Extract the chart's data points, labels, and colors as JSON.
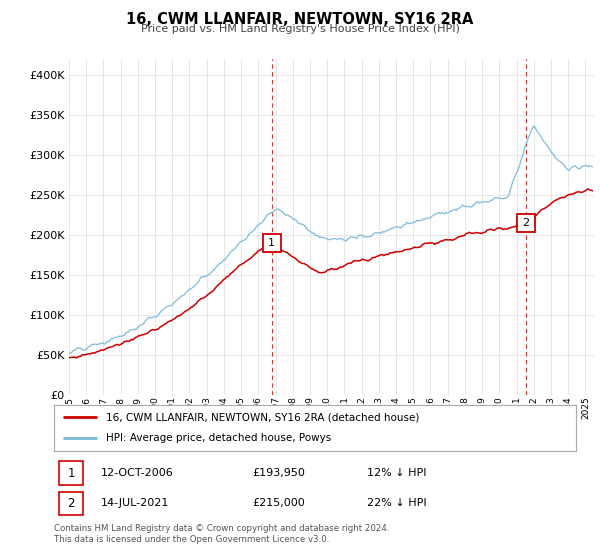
{
  "title": "16, CWM LLANFAIR, NEWTOWN, SY16 2RA",
  "subtitle": "Price paid vs. HM Land Registry's House Price Index (HPI)",
  "legend_line1": "16, CWM LLANFAIR, NEWTOWN, SY16 2RA (detached house)",
  "legend_line2": "HPI: Average price, detached house, Powys",
  "footnote": "Contains HM Land Registry data © Crown copyright and database right 2024.\nThis data is licensed under the Open Government Licence v3.0.",
  "marker1_date": "12-OCT-2006",
  "marker1_price": "£193,950",
  "marker1_hpi": "12% ↓ HPI",
  "marker2_date": "14-JUL-2021",
  "marker2_price": "£215,000",
  "marker2_hpi": "22% ↓ HPI",
  "marker1_x": 2006.78,
  "marker1_y": 193950,
  "marker2_x": 2021.53,
  "marker2_y": 215000,
  "hpi_color": "#7ab8d9",
  "price_color": "#cc0000",
  "vline_color": "#cc0000",
  "ylim": [
    0,
    420000
  ],
  "xlim_start": 1995.0,
  "xlim_end": 2025.5,
  "background_color": "#ffffff",
  "grid_color": "#dddddd",
  "yticks": [
    0,
    50000,
    100000,
    150000,
    200000,
    250000,
    300000,
    350000,
    400000
  ],
  "xticks": [
    1995,
    1996,
    1997,
    1998,
    1999,
    2000,
    2001,
    2002,
    2003,
    2004,
    2005,
    2006,
    2007,
    2008,
    2009,
    2010,
    2011,
    2012,
    2013,
    2014,
    2015,
    2016,
    2017,
    2018,
    2019,
    2020,
    2021,
    2022,
    2023,
    2024,
    2025
  ]
}
